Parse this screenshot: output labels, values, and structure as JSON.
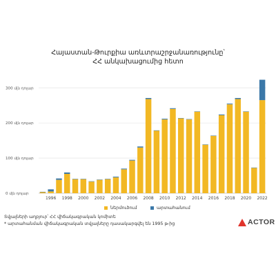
{
  "header": {
    "title_line1": "Հայաստան-Թուրքիա առևտրաշրջանառությունը՝",
    "title_line2": "ՀՀ անկախացումից հետո"
  },
  "legend": {
    "items": [
      {
        "label": "ներմուծում",
        "color": "#f2b824"
      },
      {
        "label": "արտահանում",
        "color": "#3b78a8"
      }
    ]
  },
  "notes": {
    "source": "Տվյալների աղբյուր՝ ՀՀ վիճակագրական կոմիտե",
    "footnote": "* արտահանման վիճակագրական տվյալները դասակարգվել են 1995 թ-ից"
  },
  "brand": {
    "logo_text": "ACTOR",
    "logo_color": "#e0342c"
  },
  "chart_data": {
    "type": "bar",
    "stacked": true,
    "categories": [
      "1995",
      "1996",
      "1997",
      "1998",
      "1999",
      "2000",
      "2001",
      "2002",
      "2003",
      "2004",
      "2005",
      "2006",
      "2007",
      "2008",
      "2009",
      "2010",
      "2011",
      "2012",
      "2013",
      "2014",
      "2015",
      "2016",
      "2017",
      "2018",
      "2019",
      "2020",
      "2021",
      "2022"
    ],
    "tick_labels": [
      "1996",
      "1998",
      "2000",
      "2002",
      "2004",
      "2006",
      "2008",
      "2010",
      "2012",
      "2014",
      "2016",
      "2018",
      "2020",
      "2022"
    ],
    "y_ticks": [
      {
        "value": 0,
        "label": "0 մլն դոլար"
      },
      {
        "value": 100,
        "label": "100 մլն դոլար"
      },
      {
        "value": 200,
        "label": "200 մլն դոլար"
      },
      {
        "value": 300,
        "label": "300 մլն դոլար"
      }
    ],
    "ylim": [
      0,
      330
    ],
    "series": [
      {
        "name": "ներմուծում",
        "color": "#f2b824",
        "values": [
          3,
          5,
          38,
          55,
          40,
          40,
          33,
          38,
          40,
          45,
          68,
          93,
          130,
          268,
          178,
          210,
          240,
          213,
          210,
          232,
          138,
          163,
          222,
          253,
          268,
          232,
          72,
          265
        ]
      },
      {
        "name": "արտահանում",
        "color": "#3b78a8",
        "values": [
          1,
          6,
          4,
          4,
          1,
          1,
          1,
          1,
          1,
          2,
          2,
          2,
          3,
          3,
          1,
          2,
          2,
          1,
          1,
          1,
          1,
          1,
          2,
          2,
          3,
          1,
          1,
          58
        ]
      }
    ],
    "grid": true,
    "legend_position": "bottom"
  }
}
